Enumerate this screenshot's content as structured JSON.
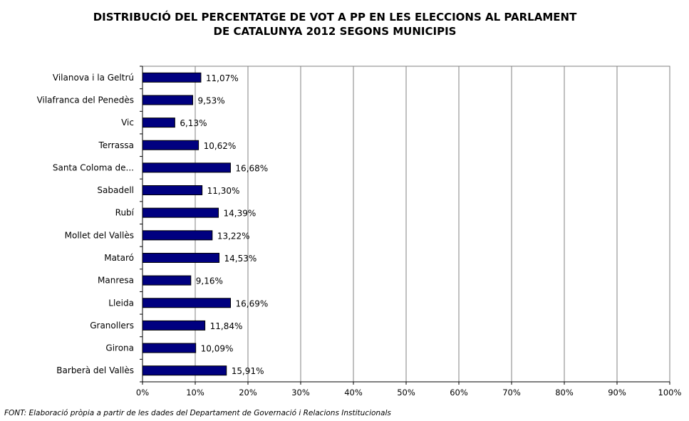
{
  "chart_data": {
    "type": "bar",
    "orientation": "horizontal",
    "title_line1": "DISTRIBUCIÓ DEL PERCENTATGE DE VOT A PP EN LES ELECCIONS AL PARLAMENT",
    "title_line2": "DE CATALUNYA 2012 SEGONS MUNICIPIS",
    "categories": [
      "Vilanova i la Geltrú",
      "Vilafranca del Penedès",
      "Vic",
      "Terrassa",
      "Santa Coloma de...",
      "Sabadell",
      "Rubí",
      "Mollet del Vallès",
      "Mataró",
      "Manresa",
      "Lleida",
      "Granollers",
      "Girona",
      "Barberà del Vallès"
    ],
    "values": [
      11.07,
      9.53,
      6.13,
      10.62,
      16.68,
      11.3,
      14.39,
      13.22,
      14.53,
      9.16,
      16.69,
      11.84,
      10.09,
      15.91
    ],
    "value_labels": [
      "11,07%",
      "9,53%",
      "6,13%",
      "10,62%",
      "16,68%",
      "11,30%",
      "14,39%",
      "13,22%",
      "14,53%",
      "9,16%",
      "16,69%",
      "11,84%",
      "10,09%",
      "15,91%"
    ],
    "x_ticks": [
      "0%",
      "10%",
      "20%",
      "30%",
      "40%",
      "50%",
      "60%",
      "70%",
      "80%",
      "90%",
      "100%"
    ],
    "xlim": [
      0,
      100
    ],
    "grid": true,
    "colors": {
      "bar_fill": "#000080",
      "bar_stroke": "#000000",
      "grid": "#808080"
    }
  },
  "source_note": "FONT: Elaboració pròpia a partir de les dades del Departament de Governació i Relacions Institucionals"
}
